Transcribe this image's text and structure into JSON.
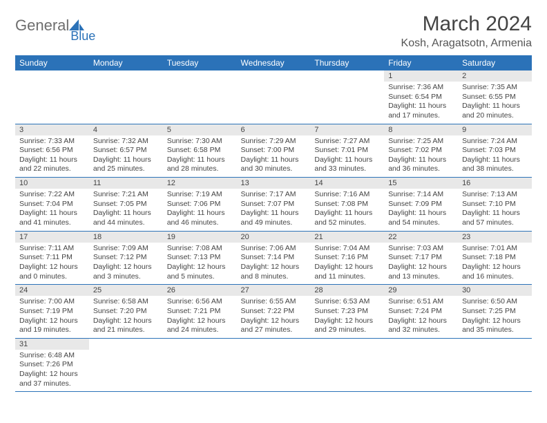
{
  "logo": {
    "part1": "General",
    "part2": "Blue"
  },
  "title": "March 2024",
  "location": "Kosh, Aragatsotn, Armenia",
  "colors": {
    "header_bg": "#2b72b8",
    "header_fg": "#ffffff",
    "daynum_bg": "#e8e8e8",
    "rule": "#2b72b8",
    "text": "#444444"
  },
  "weekdays": [
    "Sunday",
    "Monday",
    "Tuesday",
    "Wednesday",
    "Thursday",
    "Friday",
    "Saturday"
  ],
  "weeks": [
    [
      null,
      null,
      null,
      null,
      null,
      {
        "n": "1",
        "sr": "Sunrise: 7:36 AM",
        "ss": "Sunset: 6:54 PM",
        "dl": "Daylight: 11 hours and 17 minutes."
      },
      {
        "n": "2",
        "sr": "Sunrise: 7:35 AM",
        "ss": "Sunset: 6:55 PM",
        "dl": "Daylight: 11 hours and 20 minutes."
      }
    ],
    [
      {
        "n": "3",
        "sr": "Sunrise: 7:33 AM",
        "ss": "Sunset: 6:56 PM",
        "dl": "Daylight: 11 hours and 22 minutes."
      },
      {
        "n": "4",
        "sr": "Sunrise: 7:32 AM",
        "ss": "Sunset: 6:57 PM",
        "dl": "Daylight: 11 hours and 25 minutes."
      },
      {
        "n": "5",
        "sr": "Sunrise: 7:30 AM",
        "ss": "Sunset: 6:58 PM",
        "dl": "Daylight: 11 hours and 28 minutes."
      },
      {
        "n": "6",
        "sr": "Sunrise: 7:29 AM",
        "ss": "Sunset: 7:00 PM",
        "dl": "Daylight: 11 hours and 30 minutes."
      },
      {
        "n": "7",
        "sr": "Sunrise: 7:27 AM",
        "ss": "Sunset: 7:01 PM",
        "dl": "Daylight: 11 hours and 33 minutes."
      },
      {
        "n": "8",
        "sr": "Sunrise: 7:25 AM",
        "ss": "Sunset: 7:02 PM",
        "dl": "Daylight: 11 hours and 36 minutes."
      },
      {
        "n": "9",
        "sr": "Sunrise: 7:24 AM",
        "ss": "Sunset: 7:03 PM",
        "dl": "Daylight: 11 hours and 38 minutes."
      }
    ],
    [
      {
        "n": "10",
        "sr": "Sunrise: 7:22 AM",
        "ss": "Sunset: 7:04 PM",
        "dl": "Daylight: 11 hours and 41 minutes."
      },
      {
        "n": "11",
        "sr": "Sunrise: 7:21 AM",
        "ss": "Sunset: 7:05 PM",
        "dl": "Daylight: 11 hours and 44 minutes."
      },
      {
        "n": "12",
        "sr": "Sunrise: 7:19 AM",
        "ss": "Sunset: 7:06 PM",
        "dl": "Daylight: 11 hours and 46 minutes."
      },
      {
        "n": "13",
        "sr": "Sunrise: 7:17 AM",
        "ss": "Sunset: 7:07 PM",
        "dl": "Daylight: 11 hours and 49 minutes."
      },
      {
        "n": "14",
        "sr": "Sunrise: 7:16 AM",
        "ss": "Sunset: 7:08 PM",
        "dl": "Daylight: 11 hours and 52 minutes."
      },
      {
        "n": "15",
        "sr": "Sunrise: 7:14 AM",
        "ss": "Sunset: 7:09 PM",
        "dl": "Daylight: 11 hours and 54 minutes."
      },
      {
        "n": "16",
        "sr": "Sunrise: 7:13 AM",
        "ss": "Sunset: 7:10 PM",
        "dl": "Daylight: 11 hours and 57 minutes."
      }
    ],
    [
      {
        "n": "17",
        "sr": "Sunrise: 7:11 AM",
        "ss": "Sunset: 7:11 PM",
        "dl": "Daylight: 12 hours and 0 minutes."
      },
      {
        "n": "18",
        "sr": "Sunrise: 7:09 AM",
        "ss": "Sunset: 7:12 PM",
        "dl": "Daylight: 12 hours and 3 minutes."
      },
      {
        "n": "19",
        "sr": "Sunrise: 7:08 AM",
        "ss": "Sunset: 7:13 PM",
        "dl": "Daylight: 12 hours and 5 minutes."
      },
      {
        "n": "20",
        "sr": "Sunrise: 7:06 AM",
        "ss": "Sunset: 7:14 PM",
        "dl": "Daylight: 12 hours and 8 minutes."
      },
      {
        "n": "21",
        "sr": "Sunrise: 7:04 AM",
        "ss": "Sunset: 7:16 PM",
        "dl": "Daylight: 12 hours and 11 minutes."
      },
      {
        "n": "22",
        "sr": "Sunrise: 7:03 AM",
        "ss": "Sunset: 7:17 PM",
        "dl": "Daylight: 12 hours and 13 minutes."
      },
      {
        "n": "23",
        "sr": "Sunrise: 7:01 AM",
        "ss": "Sunset: 7:18 PM",
        "dl": "Daylight: 12 hours and 16 minutes."
      }
    ],
    [
      {
        "n": "24",
        "sr": "Sunrise: 7:00 AM",
        "ss": "Sunset: 7:19 PM",
        "dl": "Daylight: 12 hours and 19 minutes."
      },
      {
        "n": "25",
        "sr": "Sunrise: 6:58 AM",
        "ss": "Sunset: 7:20 PM",
        "dl": "Daylight: 12 hours and 21 minutes."
      },
      {
        "n": "26",
        "sr": "Sunrise: 6:56 AM",
        "ss": "Sunset: 7:21 PM",
        "dl": "Daylight: 12 hours and 24 minutes."
      },
      {
        "n": "27",
        "sr": "Sunrise: 6:55 AM",
        "ss": "Sunset: 7:22 PM",
        "dl": "Daylight: 12 hours and 27 minutes."
      },
      {
        "n": "28",
        "sr": "Sunrise: 6:53 AM",
        "ss": "Sunset: 7:23 PM",
        "dl": "Daylight: 12 hours and 29 minutes."
      },
      {
        "n": "29",
        "sr": "Sunrise: 6:51 AM",
        "ss": "Sunset: 7:24 PM",
        "dl": "Daylight: 12 hours and 32 minutes."
      },
      {
        "n": "30",
        "sr": "Sunrise: 6:50 AM",
        "ss": "Sunset: 7:25 PM",
        "dl": "Daylight: 12 hours and 35 minutes."
      }
    ],
    [
      {
        "n": "31",
        "sr": "Sunrise: 6:48 AM",
        "ss": "Sunset: 7:26 PM",
        "dl": "Daylight: 12 hours and 37 minutes."
      },
      null,
      null,
      null,
      null,
      null,
      null
    ]
  ]
}
